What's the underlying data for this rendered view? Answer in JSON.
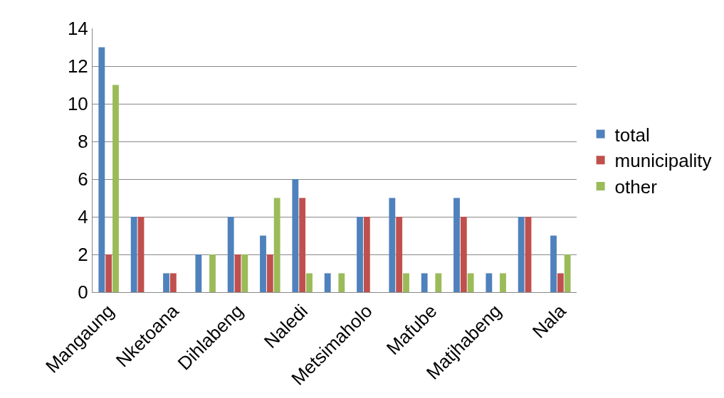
{
  "chart_data": {
    "type": "bar",
    "categories": [
      "Mangaung",
      null,
      "Nketoana",
      null,
      "Dihlabeng",
      null,
      "Naledi",
      null,
      "Metsimaholo",
      null,
      "Mafube",
      null,
      "Matjhabeng",
      null,
      "Nala"
    ],
    "series": [
      {
        "name": "total",
        "color": "#4f81bd",
        "values": [
          13,
          4,
          1,
          2,
          4,
          3,
          6,
          1,
          4,
          5,
          1,
          5,
          1,
          4,
          3
        ]
      },
      {
        "name": "municipality",
        "color": "#c0504d",
        "values": [
          2,
          4,
          1,
          0,
          2,
          2,
          5,
          0,
          4,
          4,
          0,
          4,
          0,
          4,
          1
        ]
      },
      {
        "name": "other",
        "color": "#9bbb59",
        "values": [
          11,
          0,
          0,
          2,
          2,
          5,
          1,
          1,
          0,
          1,
          1,
          1,
          1,
          0,
          2
        ]
      }
    ],
    "ylim": [
      0,
      14
    ],
    "yticks": [
      0,
      2,
      4,
      6,
      8,
      10,
      12,
      14
    ],
    "grid": "y",
    "legend": "right"
  }
}
